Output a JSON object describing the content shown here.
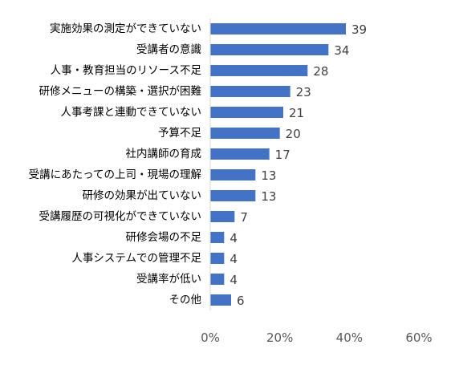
{
  "chart_data": {
    "type": "bar",
    "orientation": "horizontal",
    "categories": [
      "実施効果の測定ができていない",
      "受講者の意識",
      "人事・教育担当のリソース不足",
      "研修メニューの構築・選択が困難",
      "人事考課と連動できていない",
      "予算不足",
      "社内講師の育成",
      "受講にあたっての上司・現場の理解",
      "研修の効果が出ていない",
      "受講履歴の可視化ができていない",
      "研修会場の不足",
      "人事システムでの管理不足",
      "受講率が低い",
      "その他"
    ],
    "values": [
      39,
      34,
      28,
      23,
      21,
      20,
      17,
      13,
      13,
      7,
      4,
      4,
      4,
      6
    ],
    "x_axis": {
      "range": [
        0,
        60
      ],
      "ticks": [
        0,
        20,
        40,
        60
      ],
      "tick_labels": [
        "0%",
        "20%",
        "40%",
        "60%"
      ]
    },
    "grid": false,
    "bar_color": "#4472c4",
    "title": "",
    "xlabel": "",
    "ylabel": ""
  }
}
